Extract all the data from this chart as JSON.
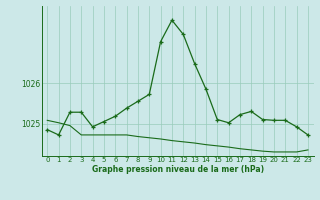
{
  "title": "Graphe pression niveau de la mer (hPa)",
  "background_color": "#cce8e8",
  "grid_color": "#99ccbb",
  "line_color": "#1a6b1a",
  "x_labels": [
    "0",
    "1",
    "2",
    "3",
    "4",
    "5",
    "6",
    "7",
    "8",
    "9",
    "10",
    "11",
    "12",
    "13",
    "14",
    "15",
    "16",
    "17",
    "18",
    "19",
    "20",
    "21",
    "22",
    "23"
  ],
  "y_ticks": [
    1025,
    1026
  ],
  "ylim": [
    1024.2,
    1027.9
  ],
  "xlim": [
    -0.5,
    23.5
  ],
  "series1_x": [
    0,
    1,
    2,
    3,
    4,
    5,
    6,
    7,
    8,
    9,
    10,
    11,
    12,
    13,
    14,
    15,
    16,
    17,
    18,
    19,
    20,
    21,
    22,
    23
  ],
  "series1_y": [
    1024.85,
    1024.72,
    1025.28,
    1025.28,
    1024.92,
    1025.05,
    1025.18,
    1025.38,
    1025.55,
    1025.72,
    1027.02,
    1027.55,
    1027.2,
    1026.48,
    1025.85,
    1025.1,
    1025.02,
    1025.22,
    1025.3,
    1025.1,
    1025.08,
    1025.08,
    1024.92,
    1024.72
  ],
  "series2_x": [
    0,
    1,
    2,
    3,
    4,
    5,
    6,
    7,
    8,
    9,
    10,
    11,
    12,
    13,
    14,
    15,
    16,
    17,
    18,
    19,
    20,
    21,
    22,
    23
  ],
  "series2_y": [
    1025.08,
    1025.02,
    1024.95,
    1024.72,
    1024.72,
    1024.72,
    1024.72,
    1024.72,
    1024.68,
    1024.65,
    1024.62,
    1024.58,
    1024.55,
    1024.52,
    1024.48,
    1024.45,
    1024.42,
    1024.38,
    1024.35,
    1024.32,
    1024.3,
    1024.3,
    1024.3,
    1024.35
  ],
  "title_fontsize": 5.5,
  "tick_fontsize": 5.0,
  "ytick_fontsize": 5.5
}
